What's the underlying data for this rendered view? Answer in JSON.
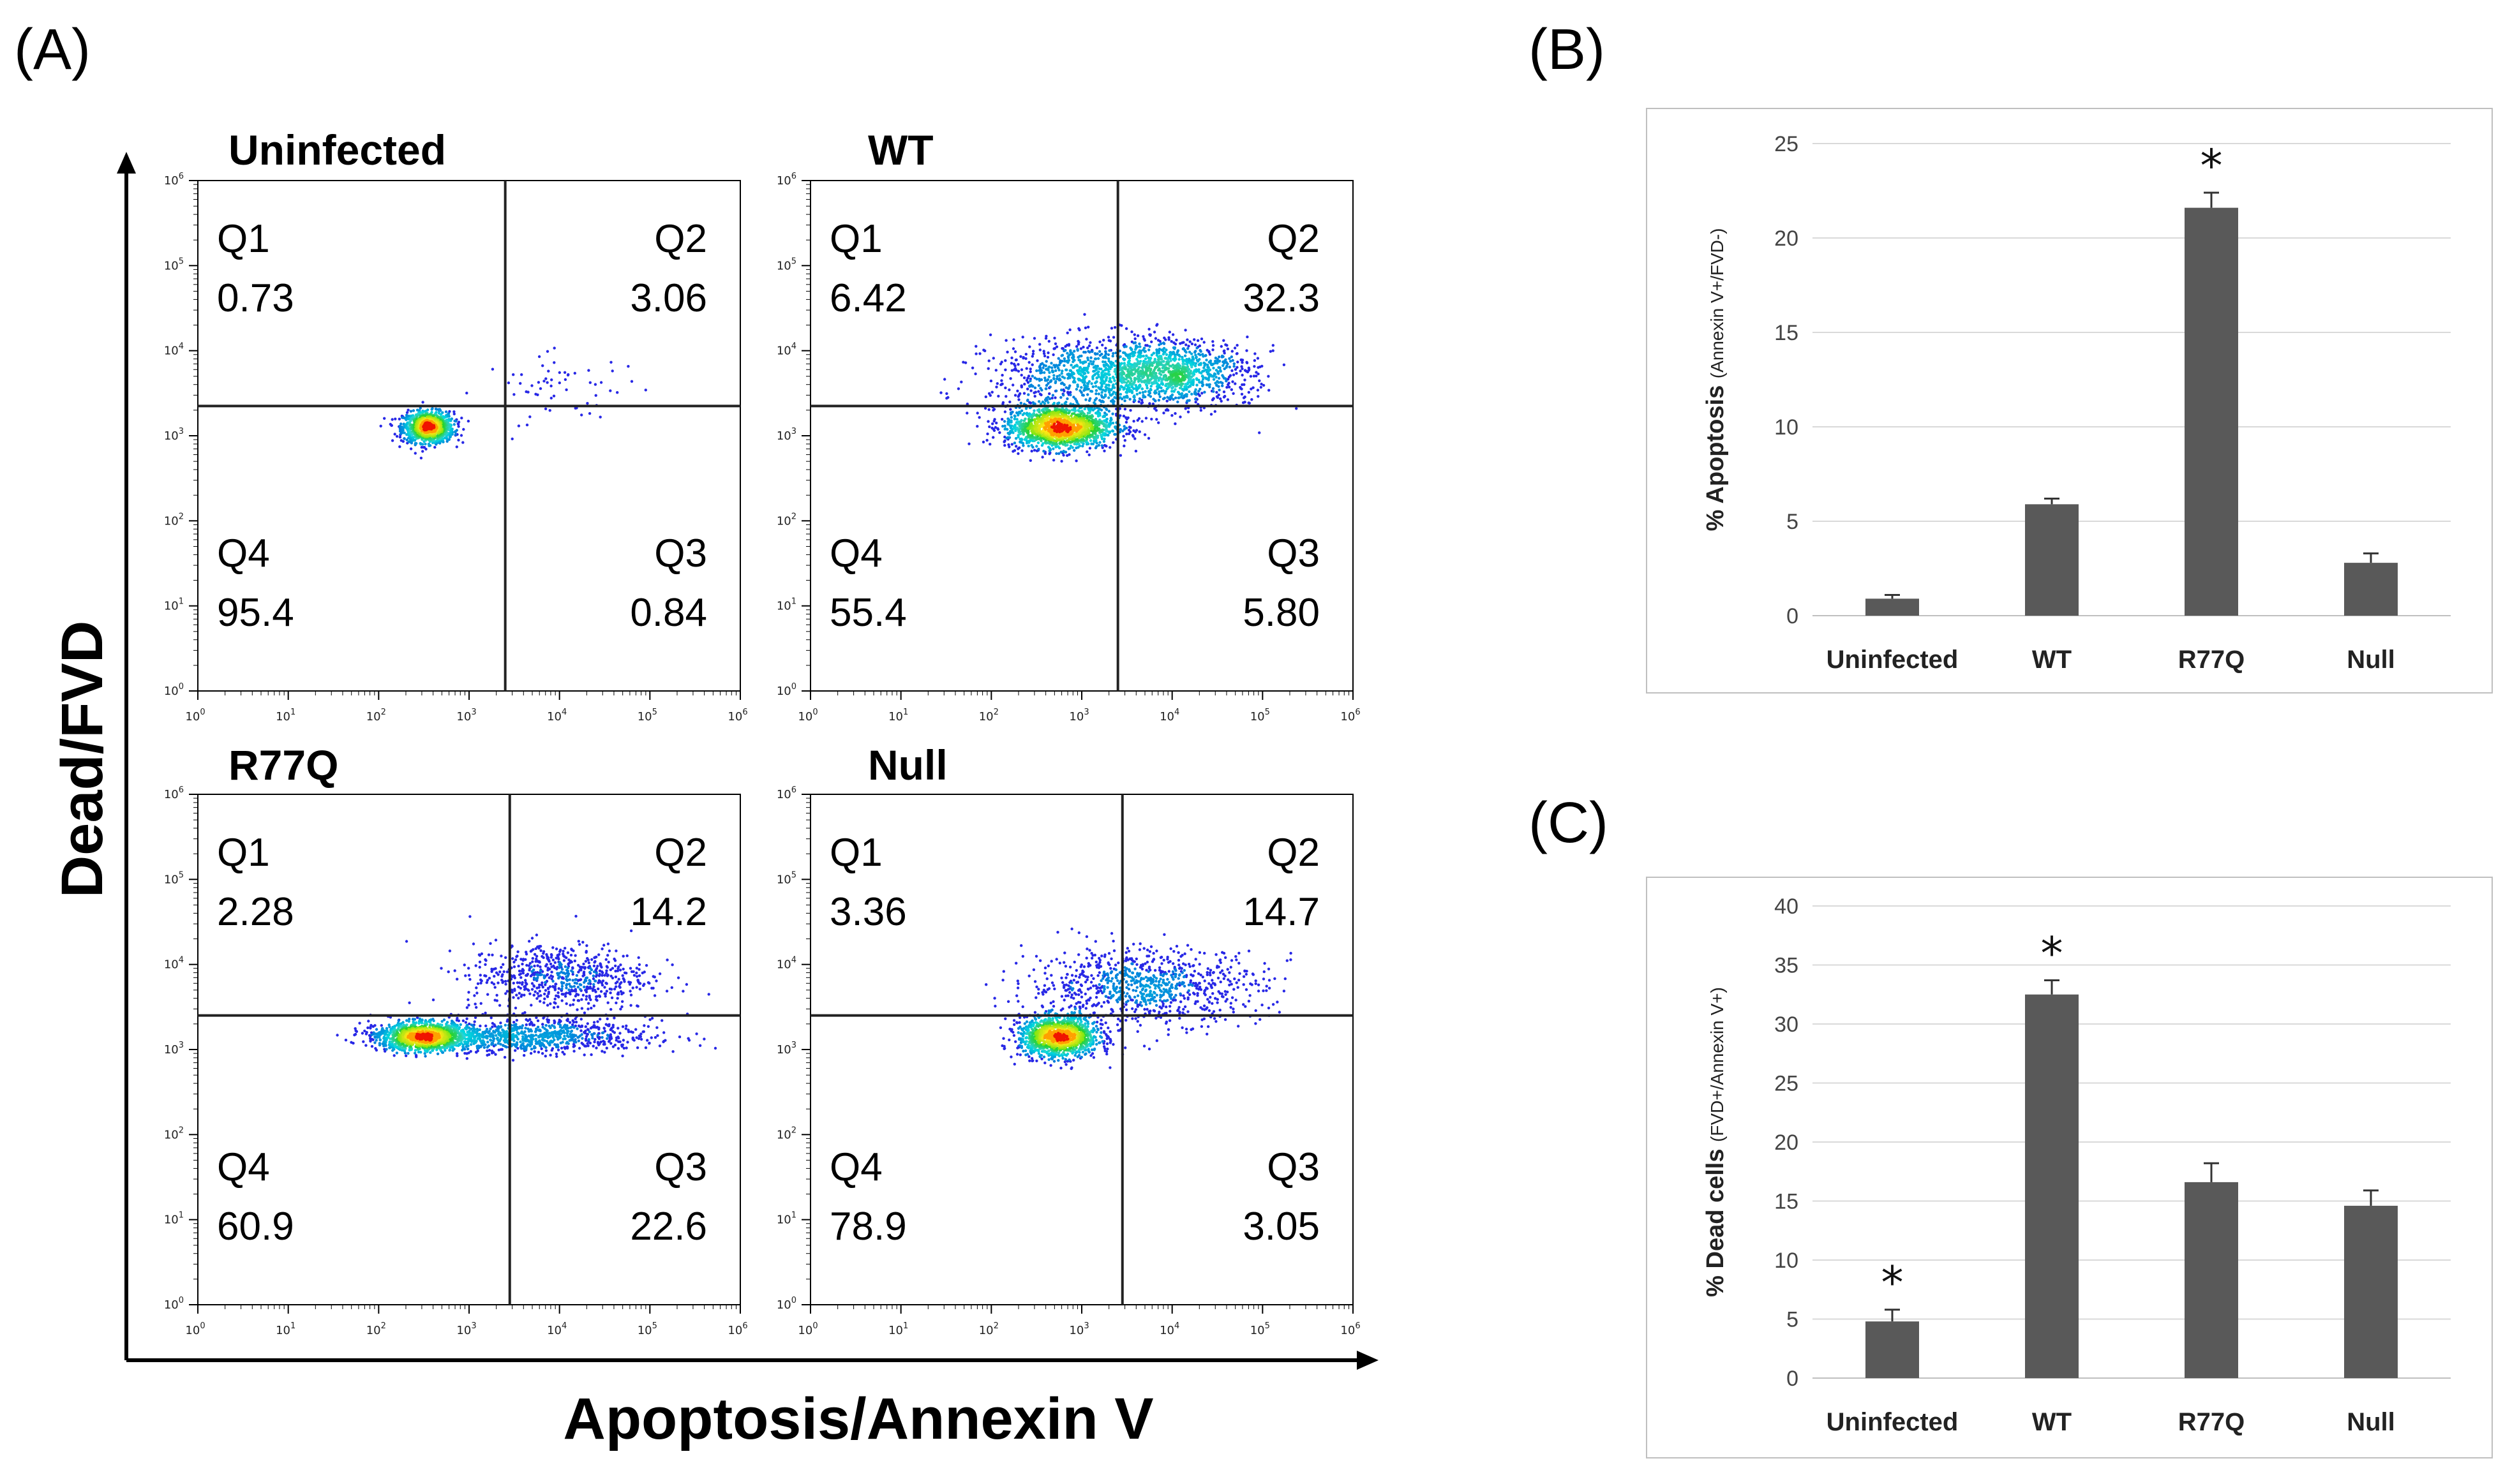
{
  "panels": {
    "a": "(A)",
    "b": "(B)",
    "c": "(C)"
  },
  "chart_data": [
    {
      "type": "scatter",
      "subtype": "flow-cytometry-quadrant-density",
      "xlabel": "Apoptosis/Annexin V",
      "ylabel": "Dead/FVD",
      "axis_ticks": [
        "0",
        "1",
        "2",
        "3",
        "4",
        "5",
        "6"
      ],
      "plots": [
        {
          "title": "Uninfected",
          "gate_x_log10": 3.4,
          "gate_y_log10": 3.35,
          "quadrants": {
            "q1": {
              "label": "Q1",
              "value": "0.73"
            },
            "q2": {
              "label": "Q2",
              "value": "3.06"
            },
            "q3": {
              "label": "Q3",
              "value": "0.84"
            },
            "q4": {
              "label": "Q4",
              "value": "95.4"
            }
          },
          "populations": [
            {
              "cx": 2.55,
              "cy": 3.1,
              "sx": 0.14,
              "sy": 0.09,
              "n": 1100
            },
            {
              "cx": 4.05,
              "cy": 3.55,
              "sx": 0.45,
              "sy": 0.2,
              "n": 60
            }
          ]
        },
        {
          "title": "WT",
          "gate_x_log10": 3.4,
          "gate_y_log10": 3.35,
          "quadrants": {
            "q1": {
              "label": "Q1",
              "value": "6.42"
            },
            "q2": {
              "label": "Q2",
              "value": "32.3"
            },
            "q3": {
              "label": "Q3",
              "value": "5.80"
            },
            "q4": {
              "label": "Q4",
              "value": "55.4"
            }
          },
          "populations": [
            {
              "cx": 2.75,
              "cy": 3.1,
              "sx": 0.3,
              "sy": 0.13,
              "n": 1500
            },
            {
              "cx": 3.3,
              "cy": 3.7,
              "sx": 0.65,
              "sy": 0.22,
              "n": 1100
            },
            {
              "cx": 4.0,
              "cy": 3.75,
              "sx": 0.45,
              "sy": 0.18,
              "n": 800
            }
          ]
        },
        {
          "title": "R77Q",
          "gate_x_log10": 3.45,
          "gate_y_log10": 3.4,
          "quadrants": {
            "q1": {
              "label": "Q1",
              "value": "2.28"
            },
            "q2": {
              "label": "Q2",
              "value": "14.2"
            },
            "q3": {
              "label": "Q3",
              "value": "22.6"
            },
            "q4": {
              "label": "Q4",
              "value": "60.9"
            }
          },
          "populations": [
            {
              "cx": 2.5,
              "cy": 3.15,
              "sx": 0.25,
              "sy": 0.08,
              "n": 1400
            },
            {
              "cx": 3.6,
              "cy": 3.15,
              "sx": 0.7,
              "sy": 0.1,
              "n": 900
            },
            {
              "cx": 4.0,
              "cy": 3.85,
              "sx": 0.5,
              "sy": 0.2,
              "n": 700
            }
          ]
        },
        {
          "title": "Null",
          "gate_x_log10": 3.45,
          "gate_y_log10": 3.4,
          "quadrants": {
            "q1": {
              "label": "Q1",
              "value": "3.36"
            },
            "q2": {
              "label": "Q2",
              "value": "14.7"
            },
            "q3": {
              "label": "Q3",
              "value": "3.05"
            },
            "q4": {
              "label": "Q4",
              "value": "78.9"
            }
          },
          "populations": [
            {
              "cx": 2.75,
              "cy": 3.15,
              "sx": 0.22,
              "sy": 0.12,
              "n": 1300
            },
            {
              "cx": 3.7,
              "cy": 3.75,
              "sx": 0.65,
              "sy": 0.22,
              "n": 900
            }
          ]
        }
      ]
    },
    {
      "type": "bar",
      "title": "",
      "categories": [
        "Uninfected",
        "WT",
        "R77Q",
        "Null"
      ],
      "values": [
        0.9,
        5.9,
        21.6,
        2.8
      ],
      "errors": [
        0.2,
        0.3,
        0.8,
        0.5
      ],
      "significant": [
        false,
        false,
        true,
        false
      ],
      "significance_mark": "*",
      "ylabel_main": "% Apoptosis",
      "ylabel_sub": "(Annexin V+/FVD-)",
      "ylim": [
        0,
        25
      ],
      "yticks": [
        0,
        5,
        10,
        15,
        20,
        25
      ],
      "ytick_labels": [
        "0",
        "5",
        "10",
        "15",
        "20",
        "25"
      ],
      "grid": true
    },
    {
      "type": "bar",
      "title": "",
      "categories": [
        "Uninfected",
        "WT",
        "R77Q",
        "Null"
      ],
      "values": [
        4.8,
        32.5,
        16.6,
        14.6
      ],
      "errors": [
        1.0,
        1.2,
        1.6,
        1.3
      ],
      "significant": [
        true,
        true,
        false,
        false
      ],
      "significance_mark": "*",
      "ylabel_main": "% Dead cells",
      "ylabel_sub": "(FVD+/Annexin V+)",
      "ylim": [
        0,
        40
      ],
      "yticks": [
        0,
        5,
        10,
        15,
        20,
        25,
        30,
        35,
        40
      ],
      "ytick_labels": [
        "0",
        "5",
        "10",
        "15",
        "20",
        "25",
        "30",
        "35",
        "40"
      ],
      "grid": true
    }
  ],
  "colors": {
    "bar": "#595959",
    "grid": "#d9d9d9",
    "frame": "#bfbfbf",
    "axis": "#000000"
  }
}
